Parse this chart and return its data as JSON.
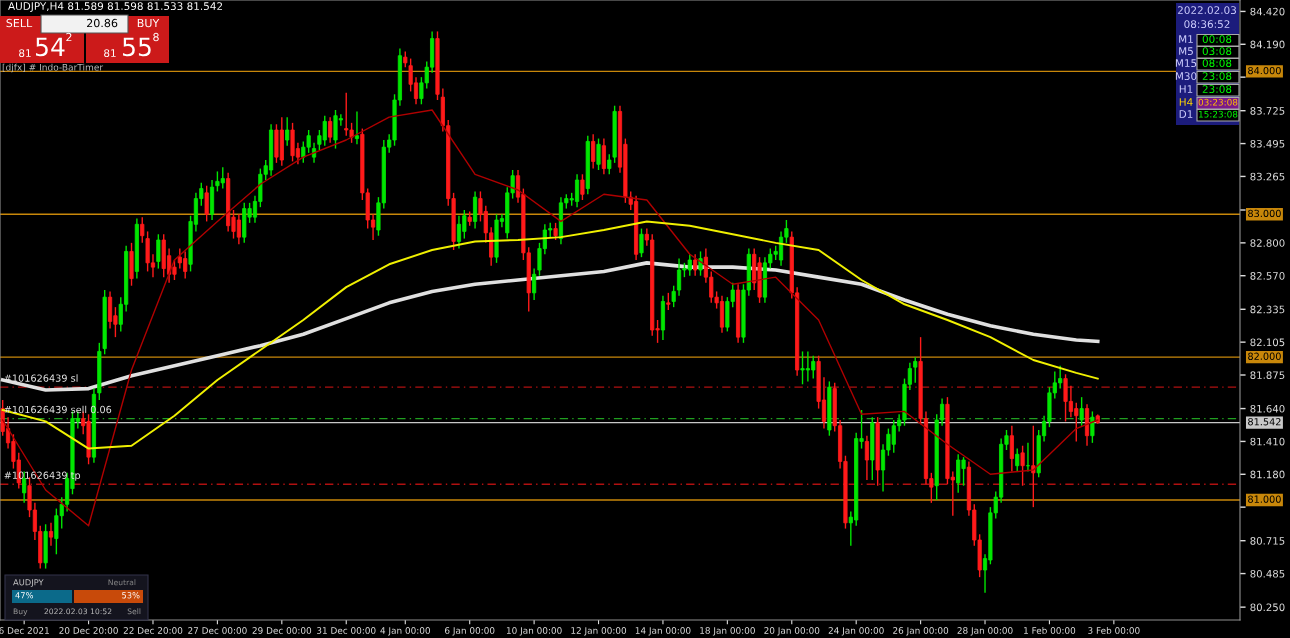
{
  "chart_data": {
    "type": "candlestick",
    "title": "AUDJPY,H4 81.589 81.598 81.533 81.542",
    "categories": [
      null,
      null,
      null,
      null,
      "6 Dec 2021",
      null,
      null,
      null,
      null,
      null,
      null,
      null,
      null,
      null,
      null,
      null,
      "20 Dec 20:00",
      null,
      null,
      null,
      null,
      null,
      null,
      null,
      null,
      null,
      null,
      null,
      "22 Dec 20:00",
      null,
      null,
      null,
      null,
      null,
      null,
      null,
      null,
      null,
      null,
      null,
      "27 Dec 00:00",
      null,
      null,
      null,
      null,
      null,
      null,
      null,
      null,
      null,
      null,
      null,
      "29 Dec 00:00",
      null,
      null,
      null,
      null,
      null,
      null,
      null,
      null,
      null,
      null,
      null,
      "31 Dec 00:00",
      null,
      null,
      null,
      null,
      null,
      null,
      null,
      null,
      null,
      null,
      "4 Jan 00:00",
      null,
      null,
      null,
      null,
      null,
      null,
      null,
      null,
      null,
      null,
      null,
      "6 Jan 00:00",
      null,
      null,
      null,
      null,
      null,
      null,
      null,
      null,
      null,
      null,
      null,
      "10 Jan 00:00",
      null,
      null,
      null,
      null,
      null,
      null,
      null,
      null,
      null,
      null,
      null,
      "12 Jan 00:00",
      null,
      null,
      null,
      null,
      null,
      null,
      null,
      null,
      null,
      null,
      null,
      "14 Jan 00:00",
      null,
      null,
      null,
      null,
      null,
      null,
      null,
      null,
      null,
      null,
      null,
      "18 Jan 00:00",
      null,
      null,
      null,
      null,
      null,
      null,
      null,
      null,
      null,
      null,
      null,
      "20 Jan 00:00",
      null,
      null,
      null,
      null,
      null,
      null,
      null,
      null,
      null,
      null,
      null,
      "24 Jan 00:00",
      null,
      null,
      null,
      null,
      null,
      null,
      null,
      null,
      null,
      null,
      null,
      "26 Jan 00:00",
      null,
      null,
      null,
      null,
      null,
      null,
      null,
      null,
      null,
      null,
      null,
      "28 Jan 00:00",
      null,
      null,
      null,
      null,
      null,
      null,
      null,
      null,
      null,
      null,
      null,
      "1 Feb 00:00",
      null,
      null,
      null,
      null,
      null,
      null,
      null,
      null,
      null,
      null,
      null,
      "3 Feb 00:00",
      null,
      null,
      null,
      null,
      null,
      null,
      null,
      null,
      null,
      null,
      null,
      null,
      null,
      null,
      null,
      null,
      null,
      null,
      null,
      null,
      null,
      null,
      null
    ],
    "ohlc": [
      [
        81.64,
        81.7,
        81.45,
        81.48
      ],
      [
        81.5,
        81.58,
        81.36,
        81.4
      ],
      [
        81.41,
        81.46,
        81.22,
        81.27
      ],
      [
        81.28,
        81.33,
        81.08,
        81.12
      ],
      [
        81.05,
        81.2,
        80.98,
        81.15
      ],
      [
        81.1,
        81.16,
        80.88,
        80.93
      ],
      [
        80.93,
        80.98,
        80.72,
        80.78
      ],
      [
        80.78,
        80.82,
        80.52,
        80.56
      ],
      [
        80.56,
        80.83,
        80.52,
        80.78
      ],
      [
        80.78,
        80.84,
        80.68,
        80.74
      ],
      [
        80.73,
        80.94,
        80.62,
        80.89
      ],
      [
        80.89,
        81.02,
        80.8,
        80.97
      ],
      [
        80.97,
        81.19,
        80.92,
        81.15
      ],
      [
        81.08,
        81.62,
        81.04,
        81.57
      ],
      [
        81.55,
        81.62,
        81.5,
        81.57
      ],
      [
        81.57,
        81.62,
        81.46,
        81.52
      ],
      [
        81.55,
        81.6,
        81.25,
        81.3
      ],
      [
        81.3,
        81.78,
        81.26,
        81.74
      ],
      [
        81.75,
        82.1,
        81.7,
        82.04
      ],
      [
        82.06,
        82.47,
        82.02,
        82.42
      ],
      [
        82.42,
        82.46,
        82.2,
        82.25
      ],
      [
        82.29,
        82.35,
        82.14,
        82.23
      ],
      [
        82.23,
        82.42,
        82.18,
        82.37
      ],
      [
        82.37,
        82.78,
        82.32,
        82.74
      ],
      [
        82.74,
        82.8,
        82.5,
        82.55
      ],
      [
        82.6,
        82.97,
        82.55,
        82.93
      ],
      [
        82.93,
        82.98,
        82.8,
        82.85
      ],
      [
        82.83,
        82.88,
        82.6,
        82.66
      ],
      [
        82.66,
        82.72,
        82.56,
        82.63
      ],
      [
        82.67,
        82.86,
        82.62,
        82.82
      ],
      [
        82.82,
        82.86,
        82.56,
        82.62
      ],
      [
        82.71,
        82.76,
        82.52,
        82.58
      ],
      [
        82.63,
        82.68,
        82.54,
        82.58
      ],
      [
        82.7,
        82.76,
        82.62,
        82.66
      ],
      [
        82.69,
        82.74,
        82.55,
        82.6
      ],
      [
        82.65,
        82.99,
        82.6,
        82.95
      ],
      [
        82.93,
        83.15,
        82.88,
        83.11
      ],
      [
        83.11,
        83.22,
        83.06,
        83.18
      ],
      [
        83.15,
        83.2,
        82.95,
        83.0
      ],
      [
        83.0,
        83.24,
        82.96,
        83.19
      ],
      [
        83.2,
        83.3,
        83.16,
        83.23
      ],
      [
        83.22,
        83.33,
        83.18,
        83.25
      ],
      [
        83.25,
        83.29,
        82.88,
        82.92
      ],
      [
        82.98,
        83.03,
        82.83,
        82.88
      ],
      [
        82.96,
        83.0,
        82.79,
        82.84
      ],
      [
        82.84,
        83.08,
        82.8,
        83.04
      ],
      [
        82.98,
        83.08,
        82.94,
        83.04
      ],
      [
        82.98,
        83.13,
        82.94,
        83.09
      ],
      [
        83.09,
        83.32,
        83.05,
        83.28
      ],
      [
        83.28,
        83.38,
        83.24,
        83.34
      ],
      [
        83.31,
        83.63,
        83.27,
        83.59
      ],
      [
        83.59,
        83.63,
        83.36,
        83.4
      ],
      [
        83.59,
        83.68,
        83.34,
        83.38
      ],
      [
        83.52,
        83.68,
        83.48,
        83.59
      ],
      [
        83.59,
        83.64,
        83.37,
        83.41
      ],
      [
        83.46,
        83.5,
        83.35,
        83.4
      ],
      [
        83.4,
        83.51,
        83.36,
        83.47
      ],
      [
        83.47,
        83.59,
        83.43,
        83.55
      ],
      [
        83.4,
        83.5,
        83.36,
        83.46
      ],
      [
        83.49,
        83.59,
        83.45,
        83.55
      ],
      [
        83.52,
        83.69,
        83.48,
        83.65
      ],
      [
        83.65,
        83.68,
        83.5,
        83.54
      ],
      [
        83.52,
        83.73,
        83.46,
        83.69
      ],
      [
        83.66,
        83.7,
        83.62,
        83.67
      ],
      [
        83.6,
        83.85,
        83.55,
        83.59
      ],
      [
        83.59,
        83.64,
        83.5,
        83.54
      ],
      [
        83.53,
        83.72,
        83.49,
        83.55
      ],
      [
        83.56,
        83.6,
        83.1,
        83.15
      ],
      [
        83.15,
        83.18,
        82.9,
        82.96
      ],
      [
        82.96,
        83.0,
        82.82,
        82.91
      ],
      [
        82.89,
        83.12,
        82.85,
        83.08
      ],
      [
        83.08,
        83.52,
        83.04,
        83.47
      ],
      [
        83.47,
        83.56,
        83.43,
        83.52
      ],
      [
        83.52,
        83.84,
        83.48,
        83.8
      ],
      [
        83.8,
        84.16,
        83.76,
        84.11
      ],
      [
        84.1,
        84.14,
        84.03,
        84.06
      ],
      [
        84.04,
        84.09,
        83.86,
        83.91
      ],
      [
        83.92,
        83.96,
        83.77,
        83.81
      ],
      [
        83.81,
        83.96,
        83.77,
        83.92
      ],
      [
        83.92,
        84.07,
        83.88,
        84.03
      ],
      [
        84.03,
        84.28,
        83.99,
        84.23
      ],
      [
        84.23,
        84.28,
        83.8,
        83.84
      ],
      [
        83.82,
        83.88,
        83.58,
        83.62
      ],
      [
        83.62,
        83.66,
        83.06,
        83.11
      ],
      [
        83.11,
        83.15,
        82.75,
        82.81
      ],
      [
        82.81,
        82.99,
        82.76,
        82.93
      ],
      [
        82.88,
        83.03,
        82.83,
        82.99
      ],
      [
        82.98,
        83.02,
        82.92,
        82.95
      ],
      [
        82.95,
        83.16,
        82.9,
        83.12
      ],
      [
        83.11,
        83.16,
        82.95,
        83.0
      ],
      [
        83.02,
        83.06,
        82.8,
        82.87
      ],
      [
        82.87,
        82.91,
        82.64,
        82.7
      ],
      [
        82.7,
        83.0,
        82.66,
        82.96
      ],
      [
        82.95,
        83.0,
        82.91,
        82.97
      ],
      [
        82.87,
        83.19,
        82.83,
        83.15
      ],
      [
        83.15,
        83.31,
        83.11,
        83.27
      ],
      [
        83.27,
        83.31,
        83.08,
        83.12
      ],
      [
        83.14,
        83.18,
        82.68,
        82.73
      ],
      [
        82.73,
        82.77,
        82.32,
        82.45
      ],
      [
        82.45,
        82.62,
        82.4,
        82.58
      ],
      [
        82.61,
        82.8,
        82.57,
        82.76
      ],
      [
        82.76,
        82.93,
        82.72,
        82.89
      ],
      [
        82.89,
        82.94,
        82.84,
        82.9
      ],
      [
        82.9,
        82.94,
        82.82,
        82.85
      ],
      [
        82.83,
        83.12,
        82.79,
        83.08
      ],
      [
        83.08,
        83.14,
        83.04,
        83.11
      ],
      [
        83.1,
        83.15,
        83.06,
        83.11
      ],
      [
        83.09,
        83.28,
        83.05,
        83.24
      ],
      [
        83.24,
        83.28,
        83.1,
        83.14
      ],
      [
        83.18,
        83.55,
        83.14,
        83.51
      ],
      [
        83.51,
        83.56,
        83.32,
        83.37
      ],
      [
        83.35,
        83.53,
        83.31,
        83.49
      ],
      [
        83.48,
        83.53,
        83.28,
        83.32
      ],
      [
        83.32,
        83.42,
        83.28,
        83.38
      ],
      [
        83.4,
        83.76,
        83.36,
        83.72
      ],
      [
        83.72,
        83.76,
        83.29,
        83.33
      ],
      [
        83.49,
        83.53,
        83.08,
        83.12
      ],
      [
        83.12,
        83.16,
        83.03,
        83.07
      ],
      [
        83.09,
        83.13,
        82.68,
        82.72
      ],
      [
        82.73,
        82.9,
        82.7,
        82.86
      ],
      [
        82.86,
        82.9,
        82.78,
        82.82
      ],
      [
        82.82,
        82.86,
        82.15,
        82.19
      ],
      [
        82.2,
        82.26,
        82.1,
        82.19
      ],
      [
        82.19,
        82.43,
        82.12,
        82.39
      ],
      [
        82.38,
        82.45,
        82.33,
        82.37
      ],
      [
        82.39,
        82.5,
        82.35,
        82.46
      ],
      [
        82.47,
        82.69,
        82.43,
        82.61
      ],
      [
        82.61,
        82.66,
        82.56,
        82.62
      ],
      [
        82.61,
        82.72,
        82.57,
        82.68
      ],
      [
        82.68,
        82.72,
        82.57,
        82.61
      ],
      [
        82.61,
        82.74,
        82.57,
        82.69
      ],
      [
        82.7,
        82.76,
        82.52,
        82.56
      ],
      [
        82.56,
        82.6,
        82.38,
        82.42
      ],
      [
        82.42,
        82.46,
        82.34,
        82.38
      ],
      [
        82.39,
        82.43,
        82.17,
        82.21
      ],
      [
        82.21,
        82.42,
        82.18,
        82.39
      ],
      [
        82.39,
        82.52,
        82.35,
        82.47
      ],
      [
        82.47,
        82.51,
        82.1,
        82.14
      ],
      [
        82.14,
        82.51,
        82.1,
        82.47
      ],
      [
        82.47,
        82.76,
        82.43,
        82.72
      ],
      [
        82.72,
        82.76,
        82.47,
        82.52
      ],
      [
        82.66,
        82.7,
        82.38,
        82.42
      ],
      [
        82.42,
        82.7,
        82.38,
        82.66
      ],
      [
        82.66,
        82.76,
        82.62,
        82.72
      ],
      [
        82.72,
        82.78,
        82.68,
        82.74
      ],
      [
        82.68,
        82.88,
        82.64,
        82.84
      ],
      [
        82.84,
        82.96,
        82.8,
        82.9
      ],
      [
        82.84,
        82.88,
        82.41,
        82.45
      ],
      [
        82.45,
        82.49,
        81.87,
        81.91
      ],
      [
        81.91,
        82.04,
        81.81,
        81.92
      ],
      [
        81.91,
        82.04,
        81.83,
        81.92
      ],
      [
        81.91,
        82.01,
        81.85,
        81.97
      ],
      [
        81.97,
        82.01,
        81.64,
        81.69
      ],
      [
        81.7,
        81.86,
        81.5,
        81.55
      ],
      [
        81.49,
        81.83,
        81.45,
        81.79
      ],
      [
        81.78,
        81.82,
        81.48,
        81.52
      ],
      [
        81.52,
        81.56,
        81.22,
        81.27
      ],
      [
        81.27,
        81.31,
        80.8,
        80.84
      ],
      [
        80.84,
        80.92,
        80.68,
        80.88
      ],
      [
        80.86,
        81.47,
        80.82,
        81.43
      ],
      [
        81.41,
        81.63,
        81.36,
        81.43
      ],
      [
        81.41,
        81.45,
        81.14,
        81.28
      ],
      [
        81.28,
        81.58,
        81.14,
        81.54
      ],
      [
        81.54,
        81.58,
        81.1,
        81.21
      ],
      [
        81.21,
        81.39,
        81.06,
        81.35
      ],
      [
        81.35,
        81.5,
        81.31,
        81.46
      ],
      [
        81.39,
        81.56,
        81.33,
        81.52
      ],
      [
        81.52,
        81.6,
        81.48,
        81.56
      ],
      [
        81.56,
        81.85,
        81.52,
        81.81
      ],
      [
        81.81,
        81.96,
        81.77,
        81.92
      ],
      [
        81.93,
        82.0,
        81.82,
        81.97
      ],
      [
        81.97,
        82.14,
        81.53,
        81.57
      ],
      [
        81.57,
        81.62,
        81.11,
        81.15
      ],
      [
        81.15,
        81.19,
        80.98,
        81.09
      ],
      [
        81.1,
        81.6,
        81.0,
        81.56
      ],
      [
        81.56,
        81.71,
        81.52,
        81.67
      ],
      [
        81.67,
        81.72,
        81.11,
        81.15
      ],
      [
        81.16,
        81.2,
        80.89,
        81.14
      ],
      [
        81.12,
        81.32,
        81.05,
        81.28
      ],
      [
        81.22,
        81.3,
        81.1,
        81.28
      ],
      [
        81.23,
        81.27,
        80.89,
        80.93
      ],
      [
        80.93,
        80.97,
        80.68,
        80.72
      ],
      [
        80.72,
        80.76,
        80.46,
        80.51
      ],
      [
        80.51,
        80.62,
        80.35,
        80.59
      ],
      [
        80.58,
        80.95,
        80.55,
        80.91
      ],
      [
        80.91,
        81.06,
        80.87,
        81.02
      ],
      [
        81.02,
        81.43,
        80.98,
        81.39
      ],
      [
        81.39,
        81.49,
        81.35,
        81.45
      ],
      [
        81.45,
        81.52,
        81.2,
        81.29
      ],
      [
        81.24,
        81.36,
        81.2,
        81.32
      ],
      [
        81.33,
        81.38,
        81.1,
        81.24
      ],
      [
        81.24,
        81.4,
        81.2,
        81.24
      ],
      [
        81.24,
        81.52,
        80.95,
        81.19
      ],
      [
        81.19,
        81.49,
        81.16,
        81.45
      ],
      [
        81.45,
        81.59,
        81.41,
        81.55
      ],
      [
        81.55,
        81.79,
        81.51,
        81.75
      ],
      [
        81.75,
        81.9,
        81.71,
        81.82
      ],
      [
        81.82,
        81.94,
        81.78,
        81.85
      ],
      [
        81.85,
        81.88,
        81.55,
        81.69
      ],
      [
        81.69,
        81.8,
        81.58,
        81.62
      ],
      [
        81.64,
        81.68,
        81.41,
        81.59
      ],
      [
        81.56,
        81.72,
        81.52,
        81.64
      ],
      [
        81.64,
        81.67,
        81.38,
        81.45
      ],
      [
        81.45,
        81.62,
        81.4,
        81.58
      ],
      [
        81.589,
        81.598,
        81.533,
        81.542
      ],
      null,
      null,
      null,
      null,
      null,
      null,
      null,
      null,
      null,
      null,
      null,
      null,
      null,
      null,
      null,
      null,
      null,
      null,
      null,
      null,
      null,
      null,
      null,
      null,
      null,
      null
    ],
    "series": [
      {
        "type": "line",
        "color": "#b00000",
        "values": [
          81.56,
          null,
          null,
          null,
          null,
          null,
          null,
          null,
          81.07,
          null,
          null,
          null,
          null,
          null,
          null,
          null,
          80.82,
          null,
          null,
          null,
          null,
          null,
          null,
          null,
          81.91,
          null,
          null,
          null,
          null,
          null,
          null,
          null,
          82.68,
          null,
          null,
          null,
          null,
          null,
          null,
          null,
          82.95,
          null,
          null,
          null,
          null,
          null,
          null,
          null,
          83.21,
          null,
          null,
          null,
          null,
          null,
          null,
          null,
          83.4,
          null,
          null,
          null,
          null,
          null,
          null,
          null,
          83.52,
          null,
          null,
          null,
          null,
          null,
          null,
          null,
          83.68,
          null,
          null,
          null,
          null,
          null,
          null,
          null,
          83.73,
          null,
          null,
          null,
          null,
          null,
          null,
          null,
          83.28,
          null,
          null,
          null,
          null,
          null,
          null,
          null,
          83.17,
          null,
          null,
          null,
          null,
          null,
          null,
          null,
          82.95,
          null,
          null,
          null,
          null,
          null,
          null,
          null,
          83.14,
          null,
          null,
          null,
          null,
          null,
          null,
          null,
          83.1,
          null,
          null,
          null,
          null,
          null,
          null,
          null,
          82.72,
          null,
          null,
          null,
          null,
          null,
          null,
          null,
          82.51,
          null,
          null,
          null,
          null,
          null,
          null,
          null,
          82.56,
          null,
          null,
          null,
          null,
          null,
          null,
          null,
          82.26,
          null,
          null,
          null,
          null,
          null,
          null,
          null,
          81.6,
          null,
          null,
          null,
          null,
          null,
          null,
          null,
          81.62,
          null,
          null,
          null,
          null,
          null,
          null,
          null,
          81.39,
          null,
          null,
          null,
          null,
          null,
          null,
          null,
          81.18,
          null,
          null,
          null,
          null,
          null,
          null,
          null,
          81.21,
          null,
          null,
          null,
          null,
          null,
          null,
          null,
          81.5,
          null,
          null,
          null,
          81.56,
          null,
          null,
          null,
          null,
          null,
          null,
          null,
          null,
          null,
          null,
          null,
          null,
          null,
          null,
          null,
          null,
          null,
          null,
          null,
          null,
          null,
          null,
          null,
          null,
          null,
          null
        ]
      },
      {
        "type": "line",
        "color": "#f0f000",
        "values": [
          81.63,
          null,
          null,
          null,
          null,
          null,
          null,
          null,
          81.55,
          null,
          null,
          null,
          null,
          null,
          null,
          null,
          81.36,
          null,
          null,
          null,
          null,
          null,
          null,
          null,
          81.38,
          null,
          null,
          null,
          null,
          null,
          null,
          null,
          81.59,
          null,
          null,
          null,
          null,
          null,
          null,
          null,
          81.84,
          null,
          null,
          null,
          null,
          null,
          null,
          null,
          82.05,
          null,
          null,
          null,
          null,
          null,
          null,
          null,
          82.26,
          null,
          null,
          null,
          null,
          null,
          null,
          null,
          82.49,
          null,
          null,
          null,
          null,
          null,
          null,
          null,
          82.65,
          null,
          null,
          null,
          null,
          null,
          null,
          null,
          82.75,
          null,
          null,
          null,
          null,
          null,
          null,
          null,
          82.81,
          null,
          null,
          null,
          null,
          null,
          null,
          null,
          82.82,
          null,
          null,
          null,
          null,
          null,
          null,
          null,
          82.84,
          null,
          null,
          null,
          null,
          null,
          null,
          null,
          82.89,
          null,
          null,
          null,
          null,
          null,
          null,
          null,
          82.95,
          null,
          null,
          null,
          null,
          null,
          null,
          null,
          82.92,
          null,
          null,
          null,
          null,
          null,
          null,
          null,
          82.86,
          null,
          null,
          null,
          null,
          null,
          null,
          null,
          82.8,
          null,
          null,
          null,
          null,
          null,
          null,
          null,
          82.75,
          null,
          null,
          null,
          null,
          null,
          null,
          null,
          82.54,
          null,
          null,
          null,
          null,
          null,
          null,
          null,
          82.37,
          null,
          null,
          null,
          null,
          null,
          null,
          null,
          82.26,
          null,
          null,
          null,
          null,
          null,
          null,
          null,
          82.14,
          null,
          null,
          null,
          null,
          null,
          null,
          null,
          81.98,
          null,
          null,
          null,
          null,
          null,
          null,
          null,
          81.89,
          null,
          null,
          null,
          81.85,
          null,
          null,
          null,
          null,
          null,
          null,
          null,
          null,
          null,
          null,
          null,
          null,
          null,
          null,
          null,
          null,
          null,
          null,
          null,
          null,
          null,
          null,
          null,
          null,
          null,
          null
        ]
      },
      {
        "type": "line",
        "color": "#e0e0e0",
        "values": [
          81.84,
          null,
          null,
          null,
          null,
          null,
          null,
          null,
          81.77,
          null,
          null,
          null,
          null,
          null,
          null,
          null,
          81.78,
          null,
          null,
          null,
          null,
          null,
          null,
          null,
          81.87,
          null,
          null,
          null,
          null,
          null,
          null,
          null,
          81.94,
          null,
          null,
          null,
          null,
          null,
          null,
          null,
          82.01,
          null,
          null,
          null,
          null,
          null,
          null,
          null,
          82.08,
          null,
          null,
          null,
          null,
          null,
          null,
          null,
          82.16,
          null,
          null,
          null,
          null,
          null,
          null,
          null,
          82.27,
          null,
          null,
          null,
          null,
          null,
          null,
          null,
          82.38,
          null,
          null,
          null,
          null,
          null,
          null,
          null,
          82.46,
          null,
          null,
          null,
          null,
          null,
          null,
          null,
          82.51,
          null,
          null,
          null,
          null,
          null,
          null,
          null,
          82.54,
          null,
          null,
          null,
          null,
          null,
          null,
          null,
          82.57,
          null,
          null,
          null,
          null,
          null,
          null,
          null,
          82.6,
          null,
          null,
          null,
          null,
          null,
          null,
          null,
          82.66,
          null,
          null,
          null,
          null,
          null,
          null,
          null,
          82.63,
          null,
          null,
          null,
          null,
          null,
          null,
          null,
          82.63,
          null,
          null,
          null,
          null,
          null,
          null,
          null,
          82.61,
          null,
          null,
          null,
          null,
          null,
          null,
          null,
          82.56,
          null,
          null,
          null,
          null,
          null,
          null,
          null,
          82.51,
          null,
          null,
          null,
          null,
          null,
          null,
          null,
          82.4,
          null,
          null,
          null,
          null,
          null,
          null,
          null,
          82.3,
          null,
          null,
          null,
          null,
          null,
          null,
          null,
          82.22,
          null,
          null,
          null,
          null,
          null,
          null,
          null,
          82.16,
          null,
          null,
          null,
          null,
          null,
          null,
          null,
          82.12,
          null,
          null,
          null,
          82.11,
          null,
          null,
          null,
          null,
          null,
          null,
          null,
          null,
          null,
          null,
          null,
          null,
          null,
          null,
          null,
          null,
          null,
          null,
          null,
          null,
          null,
          null,
          null,
          null,
          null,
          null
        ]
      }
    ],
    "ylim": [
      80.16,
      84.5
    ],
    "yticks": [
      {
        "value": 84.42,
        "label": "84.420"
      },
      {
        "value": 84.19,
        "label": "84.190"
      },
      {
        "value": 83.96,
        "label": null
      },
      {
        "value": 83.725,
        "label": "83.725"
      },
      {
        "value": 83.495,
        "label": "83.495"
      },
      {
        "value": 83.265,
        "label": "83.265"
      },
      {
        "value": 83.03,
        "label": null
      },
      {
        "value": 82.8,
        "label": "82.800"
      },
      {
        "value": 82.57,
        "label": "82.570"
      },
      {
        "value": 82.335,
        "label": "82.335"
      },
      {
        "value": 82.105,
        "label": "82.105"
      },
      {
        "value": 81.875,
        "label": "81.875"
      },
      {
        "value": 81.64,
        "label": "81.640"
      },
      {
        "value": 81.41,
        "label": "81.410"
      },
      {
        "value": 81.18,
        "label": "81.180"
      },
      {
        "value": 80.95,
        "label": null
      },
      {
        "value": 80.715,
        "label": "80.715"
      },
      {
        "value": 80.485,
        "label": "80.485"
      },
      {
        "value": 80.25,
        "label": "80.250"
      }
    ],
    "ref_lines": [
      {
        "axis": "y",
        "value": 84.0,
        "label": "84.000",
        "color": "#c8870a",
        "line_style": "solid"
      },
      {
        "axis": "y",
        "value": 83.0,
        "label": "83.000",
        "color": "#c8870a",
        "line_style": "solid"
      },
      {
        "axis": "y",
        "value": 82.0,
        "label": "82.000",
        "color": "#c8870a",
        "line_style": "solid"
      },
      {
        "axis": "y",
        "value": 81.0,
        "label": "81.000",
        "color": "#c8870a",
        "line_style": "solid"
      },
      {
        "axis": "y",
        "value": 81.542,
        "label": "81.542",
        "color": "#c8c8c8",
        "line_style": "solid"
      },
      {
        "axis": "y",
        "value": 81.79,
        "label": "#101626439 sl",
        "color": "#b01010",
        "line_style": "dashed"
      },
      {
        "axis": "y",
        "value": 81.57,
        "label": "#101626439 sell 0.06",
        "color": "#20a020",
        "line_style": "dashed"
      },
      {
        "axis": "y",
        "value": 81.11,
        "label": "#101626439 tp",
        "color": "#b01010",
        "line_style": "dashed"
      }
    ],
    "annotations": [
      "[djfx] # Indo-BarTimer",
      "SELL",
      "20.86",
      "BUY",
      "81",
      "54",
      "2",
      "81",
      "55",
      "8",
      "2022.02.03",
      "08:36:52",
      "M1",
      "00:08",
      "M5",
      "03:08",
      "M15",
      "08:08",
      "M30",
      "23:08",
      "H1",
      "23:08",
      "H4",
      "03:23:08",
      "D1",
      "15:23:08",
      "AUDJPY",
      "Neutral",
      "47%",
      "53%",
      "Buy",
      "2022.02.03 10:52",
      "Sell"
    ]
  }
}
